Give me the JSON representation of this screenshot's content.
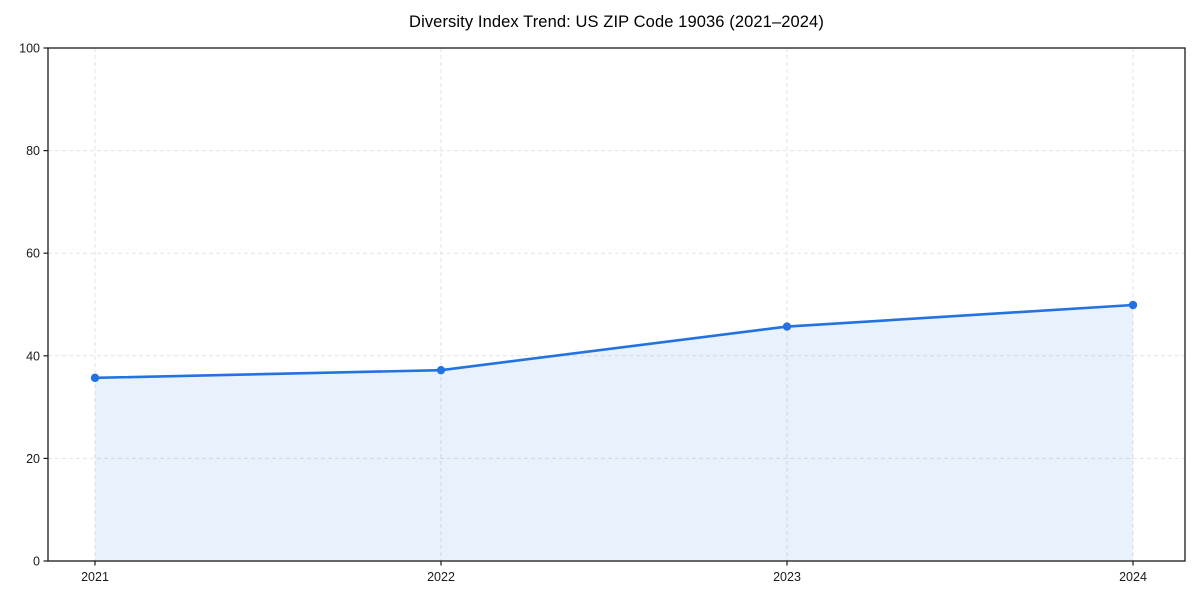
{
  "chart_data": {
    "type": "line",
    "title": "Diversity Index Trend: US ZIP Code 19036 (2021–2024)",
    "x": [
      2021,
      2022,
      2023,
      2024
    ],
    "xtick_labels": [
      "2021",
      "2022",
      "2023",
      "2024"
    ],
    "series": [
      {
        "name": "Diversity Index",
        "values": [
          35.7,
          37.2,
          45.7,
          49.9
        ]
      }
    ],
    "xlabel": "",
    "ylabel": "",
    "ylim": [
      0,
      100
    ],
    "yticks": [
      0,
      20,
      40,
      60,
      80,
      100
    ],
    "grid": "dashed-both-axes",
    "legend": "none",
    "area_fill": true,
    "colors": {
      "line": "#2372e2",
      "marker": "#2372e2",
      "fill": "rgba(35,114,226,0.10)",
      "grid": "#e3e3e3",
      "spine": "#1a1a1a",
      "tick_label": "#1a1a1a",
      "title": "#000000",
      "background": "#ffffff"
    }
  }
}
